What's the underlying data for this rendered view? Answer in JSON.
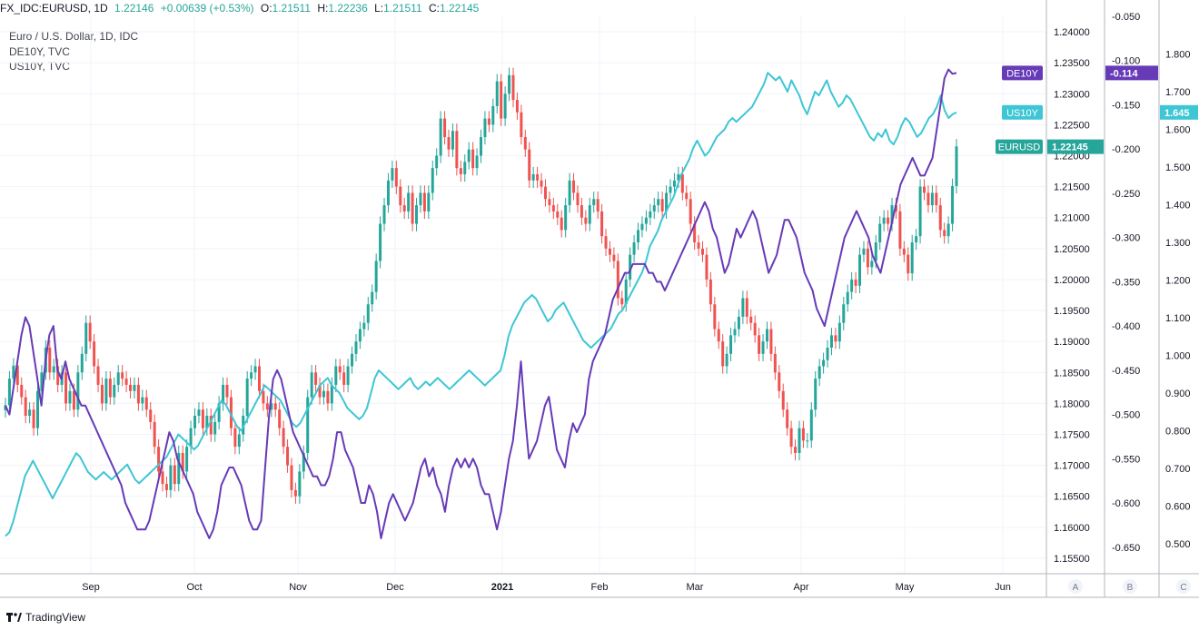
{
  "header": {
    "symbol": "FX_IDC:EURUSD, 1D",
    "last": "1.22146",
    "change": "+0.00639 (+0.53%)",
    "o_label": "O:",
    "o": "1.21511",
    "h_label": "H:",
    "h": "1.22236",
    "l_label": "L:",
    "l": "1.21511",
    "c_label": "C:",
    "c": "1.22145"
  },
  "legend": {
    "main": "Euro / U.S. Dollar, 1D, IDC",
    "series2": "DE10Y, TVC",
    "series3": "US10Y, TVC"
  },
  "footer": {
    "brand": "TradingView"
  },
  "chart_data": {
    "type": "candlestick",
    "colors": {
      "up": "#26a69a",
      "down": "#ef5350",
      "de10y": "#673ab7",
      "us10y": "#3ec6d4",
      "eurusd_label": "#26a69a"
    },
    "x_ticks": [
      "Sep",
      "Oct",
      "Nov",
      "Dec",
      "2021",
      "Feb",
      "Mar",
      "Apr",
      "May",
      "Jun"
    ],
    "axis_a": {
      "name": "A",
      "ylim": [
        1.1525,
        1.2425
      ],
      "ticks": [
        "1.24000",
        "1.23500",
        "1.23000",
        "1.22500",
        "1.22000",
        "1.21500",
        "1.21000",
        "1.20500",
        "1.20000",
        "1.19500",
        "1.19000",
        "1.18500",
        "1.18000",
        "1.17500",
        "1.17000",
        "1.16500",
        "1.16000",
        "1.15500"
      ]
    },
    "axis_b": {
      "name": "B",
      "ylim": [
        -0.68,
        -0.05
      ],
      "ticks": [
        "-0.050",
        "-0.100",
        "-0.150",
        "-0.200",
        "-0.250",
        "-0.300",
        "-0.350",
        "-0.400",
        "-0.450",
        "-0.500",
        "-0.550",
        "-0.600",
        "-0.650"
      ]
    },
    "axis_c": {
      "name": "C",
      "ylim": [
        0.42,
        1.9
      ],
      "ticks": [
        "1.800",
        "1.700",
        "1.600",
        "1.500",
        "1.400",
        "1.300",
        "1.200",
        "1.100",
        "1.000",
        "0.900",
        "0.800",
        "0.700",
        "0.600",
        "0.500"
      ]
    },
    "last_labels": [
      {
        "name": "DE10Y",
        "value": "-0.114",
        "axis": "B",
        "y": -0.114
      },
      {
        "name": "US10Y",
        "value": "1.645",
        "axis": "C",
        "y": 1.645
      },
      {
        "name": "EURUSD",
        "value": "1.22145",
        "axis": "A",
        "y": 1.22145
      }
    ],
    "eurusd_close": [
      1.1797,
      1.184,
      1.1861,
      1.183,
      1.181,
      1.178,
      1.179,
      1.176,
      1.182,
      1.185,
      1.189,
      1.185,
      1.186,
      1.183,
      1.185,
      1.18,
      1.182,
      1.179,
      1.185,
      1.188,
      1.193,
      1.19,
      1.186,
      1.183,
      1.18,
      1.184,
      1.181,
      1.183,
      1.185,
      1.184,
      1.183,
      1.182,
      1.183,
      1.18,
      1.181,
      1.179,
      1.177,
      1.173,
      1.169,
      1.167,
      1.166,
      1.17,
      1.167,
      1.172,
      1.169,
      1.173,
      1.176,
      1.178,
      1.179,
      1.176,
      1.178,
      1.175,
      1.177,
      1.18,
      1.183,
      1.181,
      1.176,
      1.173,
      1.175,
      1.178,
      1.184,
      1.185,
      1.186,
      1.182,
      1.18,
      1.179,
      1.18,
      1.179,
      1.176,
      1.173,
      1.17,
      1.166,
      1.165,
      1.169,
      1.172,
      1.181,
      1.185,
      1.183,
      1.181,
      1.182,
      1.18,
      1.183,
      1.186,
      1.185,
      1.183,
      1.186,
      1.188,
      1.19,
      1.192,
      1.193,
      1.196,
      1.198,
      1.203,
      1.209,
      1.212,
      1.216,
      1.218,
      1.215,
      1.212,
      1.211,
      1.214,
      1.209,
      1.212,
      1.214,
      1.211,
      1.214,
      1.218,
      1.22,
      1.226,
      1.223,
      1.221,
      1.224,
      1.218,
      1.217,
      1.219,
      1.221,
      1.218,
      1.22,
      1.223,
      1.226,
      1.225,
      1.228,
      1.232,
      1.226,
      1.23,
      1.233,
      1.229,
      1.227,
      1.223,
      1.221,
      1.216,
      1.217,
      1.216,
      1.215,
      1.213,
      1.212,
      1.211,
      1.21,
      1.208,
      1.212,
      1.216,
      1.214,
      1.212,
      1.21,
      1.209,
      1.212,
      1.213,
      1.211,
      1.207,
      1.205,
      1.204,
      1.203,
      1.197,
      1.196,
      1.2,
      1.204,
      1.206,
      1.208,
      1.209,
      1.21,
      1.211,
      1.212,
      1.213,
      1.211,
      1.214,
      1.215,
      1.216,
      1.217,
      1.214,
      1.213,
      1.209,
      1.206,
      1.205,
      1.204,
      1.2,
      1.196,
      1.192,
      1.19,
      1.186,
      1.188,
      1.191,
      1.192,
      1.194,
      1.197,
      1.194,
      1.193,
      1.191,
      1.188,
      1.19,
      1.192,
      1.188,
      1.185,
      1.182,
      1.179,
      1.176,
      1.173,
      1.172,
      1.176,
      1.174,
      1.174,
      1.179,
      1.184,
      1.186,
      1.187,
      1.189,
      1.191,
      1.19,
      1.193,
      1.196,
      1.198,
      1.2,
      1.199,
      1.204,
      1.205,
      1.202,
      1.203,
      1.206,
      1.209,
      1.21,
      1.209,
      1.212,
      1.211,
      1.205,
      1.204,
      1.201,
      1.206,
      1.207,
      1.215,
      1.214,
      1.212,
      1.214,
      1.212,
      1.208,
      1.207,
      1.209,
      1.2151,
      1.2215
    ],
    "de10y": [
      -0.49,
      -0.5,
      -0.47,
      -0.44,
      -0.41,
      -0.39,
      -0.4,
      -0.43,
      -0.46,
      -0.49,
      -0.44,
      -0.41,
      -0.4,
      -0.45,
      -0.46,
      -0.44,
      -0.46,
      -0.47,
      -0.48,
      -0.49,
      -0.49,
      -0.5,
      -0.51,
      -0.52,
      -0.53,
      -0.54,
      -0.55,
      -0.56,
      -0.57,
      -0.58,
      -0.6,
      -0.61,
      -0.62,
      -0.63,
      -0.63,
      -0.63,
      -0.62,
      -0.6,
      -0.58,
      -0.56,
      -0.54,
      -0.52,
      -0.53,
      -0.55,
      -0.56,
      -0.57,
      -0.58,
      -0.59,
      -0.61,
      -0.62,
      -0.63,
      -0.64,
      -0.63,
      -0.61,
      -0.58,
      -0.57,
      -0.56,
      -0.56,
      -0.57,
      -0.58,
      -0.6,
      -0.62,
      -0.63,
      -0.63,
      -0.62,
      -0.56,
      -0.5,
      -0.46,
      -0.45,
      -0.46,
      -0.48,
      -0.5,
      -0.52,
      -0.53,
      -0.54,
      -0.55,
      -0.56,
      -0.57,
      -0.57,
      -0.58,
      -0.58,
      -0.57,
      -0.55,
      -0.52,
      -0.52,
      -0.54,
      -0.55,
      -0.56,
      -0.58,
      -0.6,
      -0.6,
      -0.58,
      -0.59,
      -0.61,
      -0.64,
      -0.62,
      -0.6,
      -0.59,
      -0.6,
      -0.61,
      -0.62,
      -0.61,
      -0.6,
      -0.58,
      -0.56,
      -0.55,
      -0.57,
      -0.56,
      -0.58,
      -0.59,
      -0.61,
      -0.58,
      -0.56,
      -0.55,
      -0.56,
      -0.55,
      -0.56,
      -0.55,
      -0.56,
      -0.58,
      -0.59,
      -0.59,
      -0.61,
      -0.63,
      -0.61,
      -0.58,
      -0.55,
      -0.53,
      -0.49,
      -0.44,
      -0.5,
      -0.55,
      -0.54,
      -0.53,
      -0.51,
      -0.49,
      -0.48,
      -0.51,
      -0.54,
      -0.55,
      -0.56,
      -0.53,
      -0.51,
      -0.52,
      -0.51,
      -0.5,
      -0.46,
      -0.44,
      -0.43,
      -0.42,
      -0.41,
      -0.39,
      -0.37,
      -0.36,
      -0.35,
      -0.34,
      -0.34,
      -0.33,
      -0.33,
      -0.33,
      -0.33,
      -0.34,
      -0.34,
      -0.35,
      -0.35,
      -0.36,
      -0.35,
      -0.34,
      -0.33,
      -0.32,
      -0.31,
      -0.3,
      -0.29,
      -0.28,
      -0.27,
      -0.26,
      -0.27,
      -0.29,
      -0.3,
      -0.32,
      -0.34,
      -0.33,
      -0.31,
      -0.29,
      -0.3,
      -0.29,
      -0.28,
      -0.27,
      -0.28,
      -0.3,
      -0.32,
      -0.34,
      -0.33,
      -0.32,
      -0.3,
      -0.28,
      -0.28,
      -0.29,
      -0.3,
      -0.32,
      -0.34,
      -0.35,
      -0.36,
      -0.38,
      -0.39,
      -0.4,
      -0.38,
      -0.36,
      -0.34,
      -0.32,
      -0.3,
      -0.29,
      -0.28,
      -0.27,
      -0.28,
      -0.29,
      -0.3,
      -0.32,
      -0.33,
      -0.34,
      -0.32,
      -0.3,
      -0.28,
      -0.26,
      -0.24,
      -0.23,
      -0.22,
      -0.21,
      -0.22,
      -0.23,
      -0.23,
      -0.22,
      -0.21,
      -0.18,
      -0.15,
      -0.12,
      -0.11,
      -0.115,
      -0.114
    ],
    "us10y": [
      0.52,
      0.53,
      0.56,
      0.6,
      0.64,
      0.68,
      0.7,
      0.72,
      0.7,
      0.68,
      0.66,
      0.64,
      0.62,
      0.64,
      0.66,
      0.68,
      0.7,
      0.72,
      0.74,
      0.73,
      0.71,
      0.69,
      0.68,
      0.67,
      0.68,
      0.69,
      0.68,
      0.67,
      0.68,
      0.69,
      0.7,
      0.71,
      0.69,
      0.67,
      0.66,
      0.67,
      0.68,
      0.69,
      0.7,
      0.71,
      0.72,
      0.73,
      0.75,
      0.77,
      0.79,
      0.78,
      0.77,
      0.76,
      0.75,
      0.76,
      0.78,
      0.8,
      0.82,
      0.84,
      0.86,
      0.88,
      0.87,
      0.85,
      0.83,
      0.81,
      0.8,
      0.82,
      0.84,
      0.86,
      0.88,
      0.9,
      0.92,
      0.91,
      0.9,
      0.89,
      0.88,
      0.86,
      0.84,
      0.82,
      0.81,
      0.82,
      0.84,
      0.86,
      0.88,
      0.9,
      0.92,
      0.93,
      0.94,
      0.92,
      0.91,
      0.9,
      0.88,
      0.86,
      0.85,
      0.84,
      0.83,
      0.84,
      0.86,
      0.9,
      0.94,
      0.96,
      0.95,
      0.94,
      0.93,
      0.92,
      0.91,
      0.92,
      0.93,
      0.94,
      0.92,
      0.91,
      0.92,
      0.93,
      0.92,
      0.93,
      0.94,
      0.93,
      0.92,
      0.91,
      0.92,
      0.93,
      0.94,
      0.95,
      0.96,
      0.95,
      0.94,
      0.93,
      0.92,
      0.93,
      0.94,
      0.95,
      0.96,
      1.0,
      1.05,
      1.08,
      1.1,
      1.12,
      1.14,
      1.15,
      1.16,
      1.15,
      1.13,
      1.11,
      1.09,
      1.1,
      1.12,
      1.13,
      1.14,
      1.12,
      1.1,
      1.08,
      1.06,
      1.04,
      1.03,
      1.02,
      1.03,
      1.04,
      1.05,
      1.06,
      1.07,
      1.09,
      1.11,
      1.12,
      1.14,
      1.16,
      1.18,
      1.2,
      1.22,
      1.25,
      1.29,
      1.31,
      1.33,
      1.36,
      1.38,
      1.4,
      1.42,
      1.45,
      1.48,
      1.5,
      1.52,
      1.55,
      1.57,
      1.55,
      1.53,
      1.54,
      1.56,
      1.58,
      1.59,
      1.6,
      1.62,
      1.63,
      1.62,
      1.63,
      1.64,
      1.65,
      1.66,
      1.68,
      1.7,
      1.72,
      1.75,
      1.74,
      1.73,
      1.74,
      1.72,
      1.7,
      1.73,
      1.71,
      1.69,
      1.66,
      1.64,
      1.67,
      1.7,
      1.69,
      1.71,
      1.73,
      1.7,
      1.68,
      1.66,
      1.67,
      1.69,
      1.68,
      1.66,
      1.64,
      1.62,
      1.6,
      1.58,
      1.57,
      1.59,
      1.58,
      1.6,
      1.57,
      1.56,
      1.58,
      1.61,
      1.63,
      1.62,
      1.6,
      1.58,
      1.59,
      1.61,
      1.63,
      1.64,
      1.66,
      1.69,
      1.65,
      1.63,
      1.64,
      1.645
    ]
  }
}
